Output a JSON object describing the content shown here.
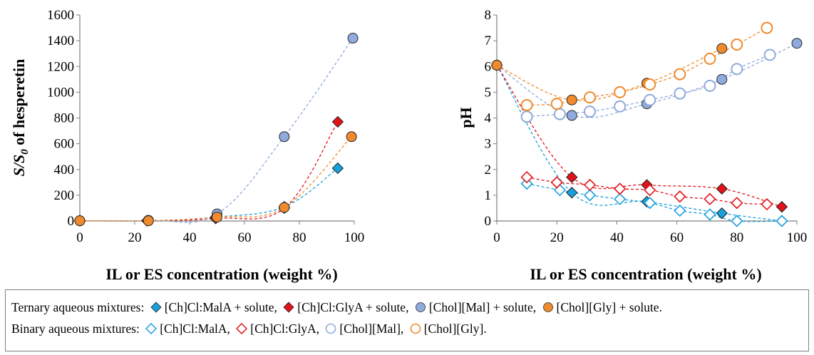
{
  "chart_data": [
    {
      "type": "scatter",
      "title": "",
      "xlabel": "IL or ES concentration (weight %)",
      "ylabel": {
        "prefix": "S/S",
        "sub": "0",
        "suffix": " of hesperetin"
      },
      "xlim": [
        0,
        100
      ],
      "ylim": [
        0,
        1600
      ],
      "xticks": [
        0,
        20,
        40,
        60,
        80,
        100
      ],
      "yticks": [
        0,
        200,
        400,
        600,
        800,
        1000,
        1200,
        1400,
        1600
      ],
      "grid": false,
      "series": [
        {
          "name": "[Ch]Cl:MalA + solute",
          "color": "#1aa0dc",
          "marker": "diamond",
          "filled": true,
          "x": [
            0,
            24.5,
            49.5,
            74.5,
            94
          ],
          "y": [
            2,
            2,
            30,
            110,
            410
          ]
        },
        {
          "name": "[Ch]Cl:GlyA + solute",
          "color": "#e3121a",
          "marker": "diamond",
          "filled": true,
          "x": [
            0,
            24.5,
            49.5,
            74.5,
            94
          ],
          "y": [
            2,
            2,
            20,
            100,
            770
          ]
        },
        {
          "name": "[Chol][Mal] + solute",
          "color": "#8faadc",
          "marker": "circle",
          "filled": true,
          "x": [
            0,
            25,
            50,
            74.5,
            99.5
          ],
          "y": [
            2,
            5,
            55,
            655,
            1420
          ]
        },
        {
          "name": "[Chol][Gly] + solute",
          "color": "#ef8b2c",
          "marker": "circle",
          "filled": true,
          "x": [
            0,
            25,
            50,
            74.5,
            99
          ],
          "y": [
            2,
            2,
            30,
            105,
            655
          ]
        }
      ]
    },
    {
      "type": "scatter",
      "title": "",
      "xlabel": "IL or ES concentration (weight %)",
      "ylabel": "pH",
      "xlim": [
        0,
        100
      ],
      "ylim": [
        0,
        8
      ],
      "xticks": [
        0,
        20,
        40,
        60,
        80,
        100
      ],
      "yticks": [
        0,
        1,
        2,
        3,
        4,
        5,
        6,
        7,
        8
      ],
      "grid": false,
      "series": [
        {
          "name": "[Ch]Cl:MalA + solute",
          "color": "#1aa0dc",
          "marker": "diamond",
          "filled": true,
          "x": [
            0,
            25,
            50,
            75,
            95
          ],
          "y": [
            6.05,
            1.1,
            0.75,
            0.3,
            0.0
          ]
        },
        {
          "name": "[Ch]Cl:GlyA + solute",
          "color": "#e3121a",
          "marker": "diamond",
          "filled": true,
          "x": [
            0,
            25,
            50,
            75,
            95
          ],
          "y": [
            6.05,
            1.7,
            1.4,
            1.25,
            0.55
          ]
        },
        {
          "name": "[Chol][Mal] + solute",
          "color": "#8faadc",
          "marker": "circle",
          "filled": true,
          "x": [
            0,
            25,
            50,
            75,
            100
          ],
          "y": [
            6.05,
            4.1,
            4.55,
            5.5,
            6.9
          ]
        },
        {
          "name": "[Chol][Gly] + solute",
          "color": "#ef8b2c",
          "marker": "circle",
          "filled": true,
          "x": [
            0,
            25,
            50,
            75
          ],
          "y": [
            6.05,
            4.7,
            5.35,
            6.7
          ]
        },
        {
          "name": "[Ch]Cl:MalA",
          "color": "#1aa0dc",
          "marker": "diamond",
          "filled": false,
          "x": [
            10,
            21,
            31,
            41,
            51,
            61,
            71,
            80,
            95
          ],
          "y": [
            1.45,
            1.2,
            1.0,
            0.85,
            0.7,
            0.4,
            0.25,
            0.0,
            0.0
          ]
        },
        {
          "name": "[Ch]Cl:GlyA",
          "color": "#e3121a",
          "marker": "diamond",
          "filled": false,
          "x": [
            10,
            20,
            31,
            41,
            51,
            61,
            71,
            80,
            90
          ],
          "y": [
            1.7,
            1.5,
            1.4,
            1.25,
            1.2,
            0.95,
            0.85,
            0.7,
            0.65
          ]
        },
        {
          "name": "[Chol][Mal]",
          "color": "#8faadc",
          "marker": "circle",
          "filled": false,
          "x": [
            10,
            21,
            31,
            41,
            51,
            61,
            71,
            80,
            91
          ],
          "y": [
            4.05,
            4.15,
            4.25,
            4.45,
            4.7,
            4.95,
            5.25,
            5.9,
            6.45
          ]
        },
        {
          "name": "[Chol][Gly]",
          "color": "#ef8b2c",
          "marker": "circle",
          "filled": false,
          "x": [
            10,
            20,
            31,
            41,
            51,
            61,
            71,
            80,
            90
          ],
          "y": [
            4.5,
            4.55,
            4.8,
            5.0,
            5.3,
            5.7,
            6.3,
            6.85,
            7.5
          ]
        }
      ]
    }
  ],
  "legend": {
    "ternary_prefix": "Ternary aqueous mixtures:",
    "binary_prefix": "Binary aqueous mixtures:",
    "ternary": [
      {
        "label": "[Ch]Cl:MalA + solute,",
        "color": "#1aa0dc",
        "marker": "diamond",
        "filled": true
      },
      {
        "label": "[Ch]Cl:GlyA + solute,",
        "color": "#e3121a",
        "marker": "diamond",
        "filled": true
      },
      {
        "label": "[Chol][Mal] + solute,",
        "color": "#8faadc",
        "marker": "circle",
        "filled": true
      },
      {
        "label": "[Chol][Gly] + solute.",
        "color": "#ef8b2c",
        "marker": "circle",
        "filled": true
      }
    ],
    "binary": [
      {
        "label": "[Ch]Cl:MalA,",
        "color": "#1aa0dc",
        "marker": "diamond",
        "filled": false
      },
      {
        "label": "[Ch]Cl:GlyA,",
        "color": "#e3121a",
        "marker": "diamond",
        "filled": false
      },
      {
        "label": "[Chol][Mal],",
        "color": "#8faadc",
        "marker": "circle",
        "filled": false
      },
      {
        "label": "[Chol][Gly].",
        "color": "#ef8b2c",
        "marker": "circle",
        "filled": false
      }
    ]
  }
}
